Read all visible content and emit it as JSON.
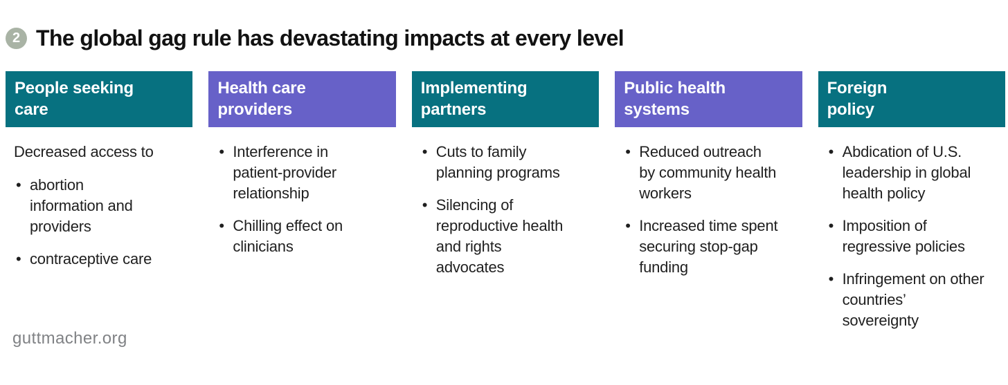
{
  "page": {
    "badge_number": "2",
    "title": "The global gag rule has devastating impacts at every level",
    "footer_text": "guttmacher.org"
  },
  "colors": {
    "teal": "#077180",
    "purple": "#6761C8",
    "badge": "#A9B3A5",
    "body_text": "#1F1F1F",
    "footer_text": "#808285"
  },
  "columns": [
    {
      "label": "People seeking\ncare",
      "color": "teal",
      "intro": "Decreased access to",
      "bullets": [
        "abortion information and providers",
        "contraceptive care"
      ]
    },
    {
      "label": "Health care\nproviders",
      "color": "purple",
      "bullets": [
        "Interference in patient-provider relationship",
        "Chilling effect on clinicians"
      ]
    },
    {
      "label": "Implementing\npartners",
      "color": "teal",
      "bullets": [
        "Cuts to family planning programs",
        "Silencing of reproductive health and rights advocates"
      ]
    },
    {
      "label": "Public health\nsystems",
      "color": "purple",
      "bullets": [
        "Reduced outreach by community health workers",
        "Increased time spent securing stop-gap funding"
      ]
    },
    {
      "label": "Foreign\npolicy",
      "color": "teal",
      "bullets": [
        "Abdication of U.S. leadership in global health policy",
        "Imposition of regressive policies",
        "Infringement on other countries’ sovereignty"
      ]
    }
  ]
}
